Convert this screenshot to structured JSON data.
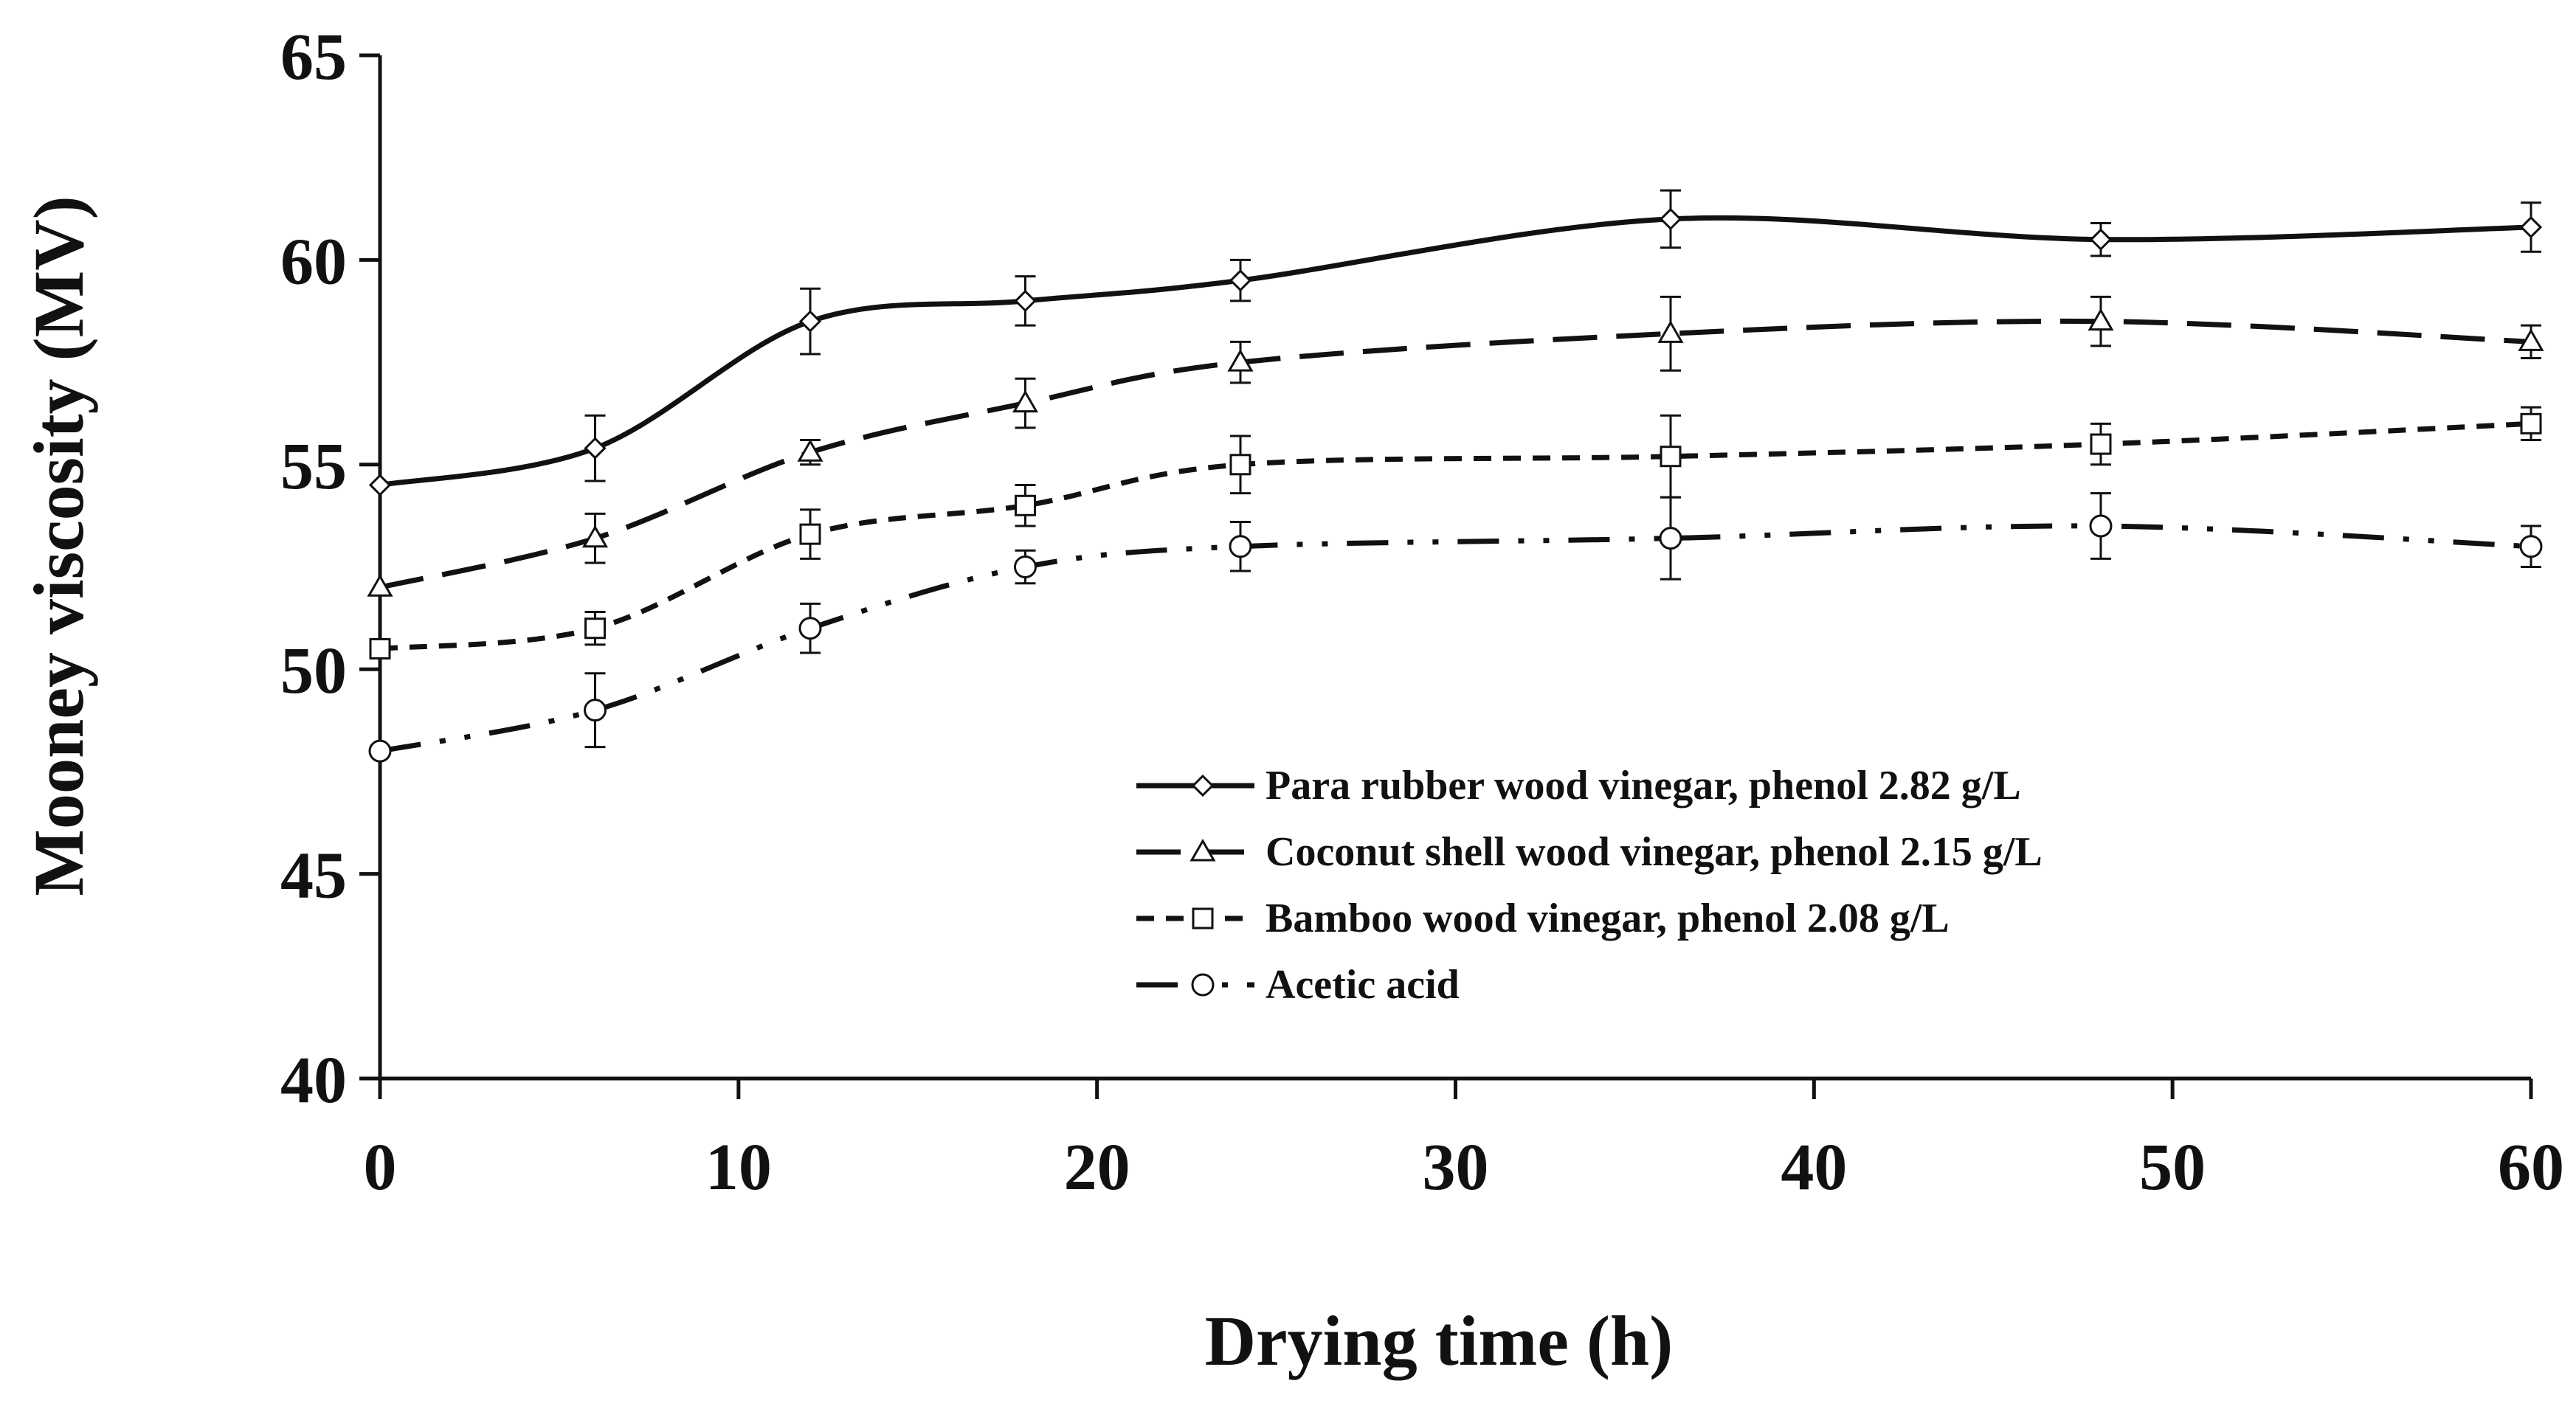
{
  "chart_data": {
    "type": "line",
    "title": "",
    "xlabel": "Drying time (h)",
    "ylabel": "Mooney viscosity (MV)",
    "xlim": [
      0,
      60
    ],
    "ylim": [
      40,
      65
    ],
    "xticks": [
      "0",
      "10",
      "20",
      "30",
      "40",
      "50",
      "60"
    ],
    "yticks": [
      "40",
      "45",
      "50",
      "55",
      "60",
      "65"
    ],
    "grid": false,
    "legend_position": "bottom-right",
    "x": [
      0,
      6,
      12,
      18,
      24,
      36,
      48,
      60
    ],
    "series": [
      {
        "name": "Para rubber wood vinegar, phenol 2.82 g/L",
        "marker": "diamond",
        "dash": "solid",
        "values": [
          54.5,
          55.4,
          58.5,
          59.0,
          59.5,
          61.0,
          60.5,
          60.8
        ],
        "errors": [
          0.0,
          0.8,
          0.8,
          0.6,
          0.5,
          0.7,
          0.4,
          0.6
        ]
      },
      {
        "name": "Coconut shell wood vinegar, phenol 2.15 g/L",
        "marker": "triangle",
        "dash": "long-dash",
        "values": [
          52.0,
          53.2,
          55.3,
          56.5,
          57.5,
          58.2,
          58.5,
          58.0
        ],
        "errors": [
          0.0,
          0.6,
          0.3,
          0.6,
          0.5,
          0.9,
          0.6,
          0.4
        ]
      },
      {
        "name": "Bamboo wood vinegar, phenol 2.08 g/L",
        "marker": "square",
        "dash": "short-dash",
        "values": [
          50.5,
          51.0,
          53.3,
          54.0,
          55.0,
          55.2,
          55.5,
          56.0
        ],
        "errors": [
          0.0,
          0.4,
          0.6,
          0.5,
          0.7,
          1.0,
          0.5,
          0.4
        ]
      },
      {
        "name": "Acetic acid",
        "marker": "circle",
        "dash": "dash-dot-dot",
        "values": [
          48.0,
          49.0,
          51.0,
          52.5,
          53.0,
          53.2,
          53.5,
          53.0
        ],
        "errors": [
          0.0,
          0.9,
          0.6,
          0.4,
          0.6,
          1.0,
          0.8,
          0.5
        ]
      }
    ]
  }
}
